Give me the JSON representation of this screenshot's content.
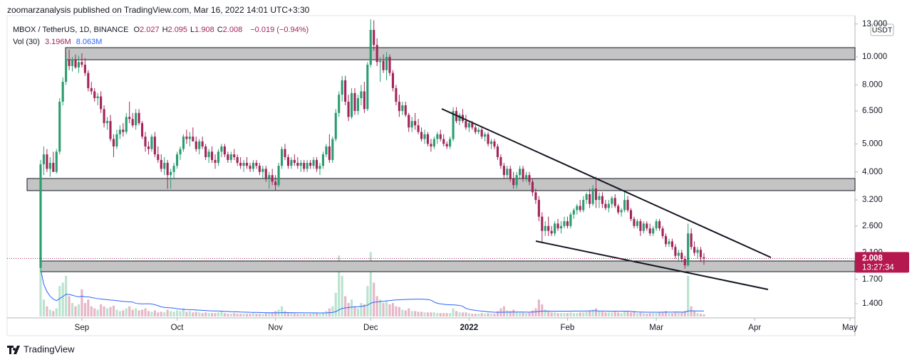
{
  "header": {
    "publisher": "zoomarzanalysis published on TradingView.com, Mar 16, 2022 14:01 UTC+3:30"
  },
  "footer": {
    "brand": "TradingView"
  },
  "chart_data": {
    "type": "candlestick",
    "symbol": "MBOX / TetherUS, 1D, BINANCE",
    "ohlc": [
      {
        "label": "O",
        "value": "2.027"
      },
      {
        "label": "H",
        "value": "2.095"
      },
      {
        "label": "L",
        "value": "1.908"
      },
      {
        "label": "C",
        "value": "2.008"
      }
    ],
    "change": "−0.019 (−0.94%)",
    "volume_legend": {
      "label": "Vol (30)",
      "value": "3.196M",
      "ma": "8.063M"
    },
    "currency": "USDT",
    "last_price": {
      "value": 2.008,
      "label": "2.008",
      "countdown": "13:27:34"
    },
    "up_color": "#2a9d6f",
    "down_color": "#a3245b",
    "vol_up_color": "#b9e3cf",
    "vol_down_color": "#e6b6c7",
    "vol_ma_color": "#2962ff",
    "vol_ma_period": 30,
    "log_scale": true,
    "ylim": [
      1.257,
      13.43
    ],
    "yticks": [
      {
        "value": 1.4,
        "label": "1.400"
      },
      {
        "value": 1.7,
        "label": "1.700"
      },
      {
        "value": 2.1,
        "label": "2.100"
      },
      {
        "value": 2.6,
        "label": "2.600"
      },
      {
        "value": 3.2,
        "label": "3.200"
      },
      {
        "value": 4,
        "label": "4.000"
      },
      {
        "value": 5,
        "label": "5.000"
      },
      {
        "value": 6.5,
        "label": "6.500"
      },
      {
        "value": 8,
        "label": "8.000"
      },
      {
        "value": 10,
        "label": "10.000"
      },
      {
        "value": 13,
        "label": "13.000"
      }
    ],
    "xlim": [
      -10.55,
      256.6
    ],
    "xticks": [
      {
        "value": 13,
        "label": "Sep"
      },
      {
        "value": 43,
        "label": "Oct"
      },
      {
        "value": 74,
        "label": "Nov"
      },
      {
        "value": 104,
        "label": "Dec"
      },
      {
        "value": 135,
        "label": "2022"
      },
      {
        "value": 166,
        "label": "Feb"
      },
      {
        "value": 194,
        "label": "Mar"
      },
      {
        "value": 225,
        "label": "Apr"
      },
      {
        "value": 255,
        "label": "May"
      }
    ],
    "vol_ylim": [
      0,
      105
    ],
    "candles": [
      [
        1.86,
        4.4,
        1.8,
        4.25
      ],
      [
        4.25,
        4.9,
        3.9,
        4.6
      ],
      [
        4.6,
        4.8,
        4.0,
        4.1
      ],
      [
        4.1,
        4.5,
        3.85,
        4.3
      ],
      [
        4.3,
        4.7,
        4.0,
        4.0
      ],
      [
        4.0,
        4.8,
        3.95,
        4.7
      ],
      [
        4.7,
        7.2,
        4.6,
        7.0
      ],
      [
        7.0,
        8.5,
        6.8,
        8.2
      ],
      [
        8.2,
        10.4,
        8.0,
        9.8
      ],
      [
        9.8,
        10.6,
        9.0,
        9.3
      ],
      [
        9.3,
        10.0,
        8.9,
        9.8
      ],
      [
        9.8,
        10.2,
        9.1,
        9.2
      ],
      [
        9.2,
        10.1,
        8.8,
        9.6
      ],
      [
        9.6,
        10.3,
        9.2,
        9.4
      ],
      [
        9.4,
        9.9,
        8.6,
        8.8
      ],
      [
        8.8,
        9.0,
        7.6,
        7.8
      ],
      [
        7.8,
        8.2,
        7.4,
        7.6
      ],
      [
        7.6,
        7.8,
        7.0,
        7.2
      ],
      [
        7.2,
        7.5,
        6.8,
        7.3
      ],
      [
        7.3,
        7.6,
        6.4,
        6.6
      ],
      [
        6.6,
        6.8,
        5.7,
        5.9
      ],
      [
        5.9,
        6.2,
        5.6,
        6.0
      ],
      [
        6.0,
        6.3,
        5.1,
        5.2
      ],
      [
        5.2,
        5.4,
        4.5,
        4.9
      ],
      [
        4.9,
        5.6,
        4.8,
        5.4
      ],
      [
        5.4,
        5.8,
        5.2,
        5.6
      ],
      [
        5.6,
        5.9,
        5.3,
        5.5
      ],
      [
        5.5,
        6.4,
        5.4,
        6.2
      ],
      [
        6.2,
        7.0,
        5.9,
        6.1
      ],
      [
        6.1,
        6.4,
        5.7,
        5.8
      ],
      [
        5.8,
        6.6,
        5.6,
        6.4
      ],
      [
        6.4,
        6.6,
        5.8,
        5.9
      ],
      [
        5.9,
        6.0,
        5.2,
        5.3
      ],
      [
        5.3,
        5.5,
        4.7,
        4.9
      ],
      [
        4.9,
        5.1,
        4.6,
        4.8
      ],
      [
        4.8,
        5.4,
        4.7,
        5.3
      ],
      [
        5.3,
        5.5,
        4.5,
        4.6
      ],
      [
        4.6,
        4.9,
        4.3,
        4.4
      ],
      [
        4.4,
        4.6,
        4.0,
        4.1
      ],
      [
        4.1,
        4.5,
        3.9,
        4.3
      ],
      [
        4.3,
        4.4,
        3.5,
        3.9
      ],
      [
        3.9,
        4.1,
        3.5,
        4.0
      ],
      [
        4.0,
        4.3,
        3.8,
        4.2
      ],
      [
        4.2,
        4.7,
        4.1,
        4.6
      ],
      [
        4.6,
        4.9,
        4.4,
        4.8
      ],
      [
        4.8,
        5.4,
        4.7,
        5.3
      ],
      [
        5.3,
        5.6,
        5.0,
        5.2
      ],
      [
        5.2,
        5.5,
        4.9,
        5.3
      ],
      [
        5.3,
        5.7,
        5.1,
        5.1
      ],
      [
        5.1,
        5.3,
        4.7,
        4.8
      ],
      [
        4.8,
        5.2,
        4.6,
        5.1
      ],
      [
        5.1,
        5.3,
        4.8,
        4.9
      ],
      [
        4.9,
        5.0,
        4.4,
        4.5
      ],
      [
        4.5,
        4.8,
        4.3,
        4.7
      ],
      [
        4.7,
        4.9,
        4.3,
        4.4
      ],
      [
        4.4,
        4.6,
        4.1,
        4.3
      ],
      [
        4.3,
        4.8,
        4.2,
        4.7
      ],
      [
        4.7,
        5.0,
        4.5,
        4.9
      ],
      [
        4.9,
        5.0,
        4.5,
        4.6
      ],
      [
        4.6,
        4.7,
        4.3,
        4.4
      ],
      [
        4.4,
        4.7,
        4.3,
        4.6
      ],
      [
        4.6,
        4.8,
        4.4,
        4.5
      ],
      [
        4.5,
        4.6,
        4.2,
        4.3
      ],
      [
        4.3,
        4.5,
        4.1,
        4.2
      ],
      [
        4.2,
        4.4,
        4.0,
        4.3
      ],
      [
        4.3,
        4.5,
        4.1,
        4.2
      ],
      [
        4.2,
        4.3,
        4.0,
        4.1
      ],
      [
        4.1,
        4.4,
        4.0,
        4.3
      ],
      [
        4.3,
        4.4,
        4.1,
        4.2
      ],
      [
        4.2,
        4.3,
        3.9,
        4.0
      ],
      [
        4.0,
        4.2,
        3.8,
        4.1
      ],
      [
        4.1,
        4.2,
        3.7,
        3.8
      ],
      [
        3.8,
        4.0,
        3.5,
        3.9
      ],
      [
        3.9,
        4.1,
        3.6,
        3.7
      ],
      [
        3.7,
        3.9,
        3.45,
        3.6
      ],
      [
        3.6,
        4.3,
        3.55,
        4.2
      ],
      [
        4.2,
        4.9,
        4.1,
        4.8
      ],
      [
        4.8,
        5.0,
        4.4,
        4.5
      ],
      [
        4.5,
        4.6,
        4.1,
        4.2
      ],
      [
        4.2,
        4.5,
        4.1,
        4.4
      ],
      [
        4.4,
        4.6,
        4.2,
        4.3
      ],
      [
        4.3,
        4.5,
        4.1,
        4.2
      ],
      [
        4.2,
        4.4,
        4.0,
        4.3
      ],
      [
        4.3,
        4.4,
        4.0,
        4.1
      ],
      [
        4.1,
        4.4,
        4.0,
        4.3
      ],
      [
        4.3,
        4.4,
        4.1,
        4.2
      ],
      [
        4.2,
        4.5,
        4.1,
        4.4
      ],
      [
        4.4,
        4.5,
        4.0,
        4.1
      ],
      [
        4.1,
        4.3,
        3.9,
        4.2
      ],
      [
        4.2,
        4.7,
        4.1,
        4.6
      ],
      [
        4.6,
        5.0,
        4.5,
        4.9
      ],
      [
        4.9,
        5.4,
        4.3,
        4.4
      ],
      [
        4.4,
        5.3,
        4.3,
        5.2
      ],
      [
        5.2,
        6.6,
        5.1,
        6.4
      ],
      [
        6.4,
        7.6,
        6.2,
        7.4
      ],
      [
        7.4,
        8.6,
        7.0,
        8.3
      ],
      [
        8.3,
        8.6,
        6.8,
        7.0
      ],
      [
        7.0,
        7.4,
        6.0,
        6.2
      ],
      [
        6.2,
        7.8,
        6.1,
        7.5
      ],
      [
        7.5,
        7.8,
        6.3,
        6.5
      ],
      [
        6.5,
        7.4,
        6.3,
        7.2
      ],
      [
        7.2,
        8.0,
        6.8,
        7.6
      ],
      [
        7.6,
        8.2,
        6.4,
        6.6
      ],
      [
        6.6,
        9.6,
        6.5,
        9.4
      ],
      [
        9.4,
        13.5,
        9.2,
        12.4
      ],
      [
        12.4,
        13.4,
        10.5,
        11.0
      ],
      [
        11.0,
        11.6,
        9.3,
        9.6
      ],
      [
        9.6,
        10.0,
        8.2,
        9.7
      ],
      [
        9.7,
        10.2,
        8.8,
        9.0
      ],
      [
        9.0,
        10.4,
        8.3,
        10.0
      ],
      [
        10.0,
        10.2,
        8.6,
        8.8
      ],
      [
        8.8,
        9.0,
        7.6,
        7.8
      ],
      [
        7.8,
        8.0,
        6.8,
        7.0
      ],
      [
        7.0,
        7.4,
        6.2,
        6.5
      ],
      [
        6.5,
        7.0,
        6.3,
        6.8
      ],
      [
        6.8,
        7.0,
        6.2,
        6.3
      ],
      [
        6.3,
        6.4,
        5.5,
        5.7
      ],
      [
        5.7,
        6.2,
        5.5,
        6.0
      ],
      [
        6.0,
        6.4,
        5.6,
        5.8
      ],
      [
        5.8,
        6.1,
        5.4,
        5.5
      ],
      [
        5.5,
        5.7,
        5.1,
        5.2
      ],
      [
        5.2,
        5.6,
        5.0,
        5.4
      ],
      [
        5.4,
        5.5,
        4.9,
        5.0
      ],
      [
        5.0,
        5.2,
        4.7,
        4.9
      ],
      [
        4.9,
        5.3,
        4.8,
        5.2
      ],
      [
        5.2,
        5.5,
        5.0,
        5.4
      ],
      [
        5.4,
        5.6,
        5.1,
        5.2
      ],
      [
        5.2,
        5.4,
        4.9,
        5.0
      ],
      [
        5.0,
        5.1,
        4.8,
        4.9
      ],
      [
        4.9,
        5.3,
        4.8,
        5.2
      ],
      [
        5.2,
        6.7,
        5.1,
        6.5
      ],
      [
        6.5,
        6.7,
        5.9,
        6.0
      ],
      [
        6.0,
        6.4,
        5.8,
        6.3
      ],
      [
        6.3,
        6.6,
        5.9,
        6.0
      ],
      [
        6.0,
        6.3,
        5.6,
        5.7
      ],
      [
        5.7,
        6.0,
        5.5,
        5.9
      ],
      [
        5.9,
        6.0,
        5.6,
        5.7
      ],
      [
        5.7,
        5.8,
        5.4,
        5.5
      ],
      [
        5.5,
        5.7,
        5.4,
        5.6
      ],
      [
        5.6,
        5.7,
        5.2,
        5.3
      ],
      [
        5.3,
        5.5,
        5.1,
        5.4
      ],
      [
        5.4,
        5.5,
        4.9,
        5.0
      ],
      [
        5.0,
        5.2,
        4.8,
        5.1
      ],
      [
        5.1,
        5.2,
        4.8,
        4.9
      ],
      [
        4.9,
        5.0,
        4.4,
        4.5
      ],
      [
        4.5,
        4.6,
        4.1,
        4.2
      ],
      [
        4.2,
        4.3,
        3.8,
        3.9
      ],
      [
        3.9,
        4.2,
        3.8,
        4.1
      ],
      [
        4.1,
        4.2,
        3.7,
        3.8
      ],
      [
        3.8,
        4.0,
        3.5,
        3.6
      ],
      [
        3.6,
        4.0,
        3.5,
        3.9
      ],
      [
        3.9,
        4.2,
        3.8,
        4.1
      ],
      [
        4.1,
        4.2,
        3.7,
        3.8
      ],
      [
        3.8,
        4.0,
        3.7,
        3.9
      ],
      [
        3.9,
        4.0,
        3.6,
        3.7
      ],
      [
        3.7,
        3.8,
        3.3,
        3.4
      ],
      [
        3.4,
        3.5,
        3.1,
        3.2
      ],
      [
        3.2,
        3.3,
        2.7,
        2.8
      ],
      [
        2.8,
        2.9,
        2.3,
        2.5
      ],
      [
        2.5,
        2.7,
        2.4,
        2.6
      ],
      [
        2.6,
        2.8,
        2.4,
        2.5
      ],
      [
        2.5,
        2.6,
        2.4,
        2.45
      ],
      [
        2.45,
        2.7,
        2.4,
        2.65
      ],
      [
        2.65,
        2.75,
        2.5,
        2.55
      ],
      [
        2.55,
        2.7,
        2.45,
        2.6
      ],
      [
        2.6,
        2.8,
        2.55,
        2.7
      ],
      [
        2.7,
        2.8,
        2.55,
        2.6
      ],
      [
        2.6,
        2.9,
        2.55,
        2.85
      ],
      [
        2.85,
        3.0,
        2.75,
        2.95
      ],
      [
        2.95,
        3.1,
        2.85,
        3.05
      ],
      [
        3.05,
        3.2,
        2.9,
        2.95
      ],
      [
        2.95,
        3.3,
        2.9,
        3.2
      ],
      [
        3.2,
        3.4,
        3.1,
        3.35
      ],
      [
        3.35,
        3.5,
        3.0,
        3.1
      ],
      [
        3.1,
        3.6,
        3.05,
        3.5
      ],
      [
        3.5,
        3.85,
        3.0,
        3.2
      ],
      [
        3.2,
        3.4,
        3.0,
        3.3
      ],
      [
        3.3,
        3.4,
        3.0,
        3.1
      ],
      [
        3.1,
        3.2,
        2.95,
        3.0
      ],
      [
        3.0,
        3.2,
        2.9,
        3.1
      ],
      [
        3.1,
        3.3,
        3.0,
        3.25
      ],
      [
        3.25,
        3.35,
        3.0,
        3.05
      ],
      [
        3.05,
        3.1,
        2.85,
        2.9
      ],
      [
        2.9,
        3.0,
        2.8,
        2.95
      ],
      [
        2.95,
        3.4,
        2.9,
        3.2
      ],
      [
        3.2,
        3.3,
        2.9,
        2.95
      ],
      [
        2.95,
        3.0,
        2.7,
        2.75
      ],
      [
        2.75,
        2.8,
        2.55,
        2.6
      ],
      [
        2.6,
        2.75,
        2.55,
        2.7
      ],
      [
        2.7,
        2.75,
        2.4,
        2.5
      ],
      [
        2.5,
        2.7,
        2.45,
        2.65
      ],
      [
        2.65,
        2.7,
        2.5,
        2.55
      ],
      [
        2.55,
        2.65,
        2.4,
        2.45
      ],
      [
        2.45,
        2.6,
        2.4,
        2.55
      ],
      [
        2.55,
        2.75,
        2.5,
        2.7
      ],
      [
        2.7,
        2.75,
        2.5,
        2.55
      ],
      [
        2.55,
        2.6,
        2.35,
        2.4
      ],
      [
        2.4,
        2.45,
        2.2,
        2.25
      ],
      [
        2.25,
        2.35,
        2.2,
        2.3
      ],
      [
        2.3,
        2.35,
        2.15,
        2.2
      ],
      [
        2.2,
        2.25,
        2.0,
        2.05
      ],
      [
        2.05,
        2.15,
        1.95,
        2.1
      ],
      [
        2.1,
        2.15,
        1.95,
        2.0
      ],
      [
        2.0,
        2.05,
        1.85,
        1.9
      ],
      [
        1.9,
        2.65,
        1.88,
        2.45
      ],
      [
        2.45,
        2.55,
        2.15,
        2.2
      ],
      [
        2.2,
        2.3,
        2.05,
        2.1
      ],
      [
        2.1,
        2.2,
        2.0,
        2.15
      ],
      [
        2.15,
        2.2,
        1.95,
        2.027
      ],
      [
        2.027,
        2.095,
        1.908,
        2.008
      ]
    ],
    "volume": [
      70,
      25,
      15,
      10,
      8,
      12,
      45,
      50,
      60,
      30,
      20,
      15,
      18,
      40,
      20,
      25,
      15,
      12,
      10,
      18,
      15,
      12,
      14,
      16,
      10,
      8,
      9,
      12,
      15,
      10,
      12,
      9,
      10,
      12,
      8,
      7,
      9,
      6,
      7,
      6,
      10,
      8,
      7,
      9,
      8,
      12,
      7,
      8,
      6,
      7,
      6,
      5,
      6,
      5,
      5,
      5,
      6,
      7,
      5,
      4,
      4,
      5,
      4,
      4,
      4,
      4,
      4,
      5,
      4,
      4,
      4,
      5,
      5,
      6,
      8,
      10,
      15,
      8,
      6,
      5,
      5,
      4,
      4,
      4,
      4,
      4,
      5,
      5,
      4,
      6,
      8,
      12,
      15,
      35,
      90,
      60,
      30,
      20,
      25,
      15,
      12,
      20,
      18,
      45,
      95,
      50,
      30,
      25,
      20,
      22,
      18,
      20,
      15,
      14,
      10,
      9,
      12,
      8,
      8,
      7,
      7,
      6,
      6,
      6,
      6,
      5,
      5,
      5,
      5,
      5,
      12,
      8,
      6,
      6,
      6,
      5,
      4,
      4,
      4,
      5,
      4,
      5,
      4,
      4,
      8,
      12,
      15,
      9,
      8,
      10,
      7,
      6,
      6,
      5,
      6,
      9,
      12,
      25,
      18,
      10,
      8,
      6,
      6,
      5,
      5,
      5,
      5,
      6,
      5,
      5,
      6,
      6,
      7,
      8,
      10,
      12,
      8,
      7,
      6,
      6,
      6,
      7,
      6,
      5,
      8,
      7,
      6,
      8,
      5,
      6,
      5,
      4,
      5,
      5,
      5,
      6,
      6,
      8,
      5,
      5,
      7,
      6,
      6,
      8,
      60,
      15,
      8,
      5,
      4,
      3.196
    ]
  }
}
